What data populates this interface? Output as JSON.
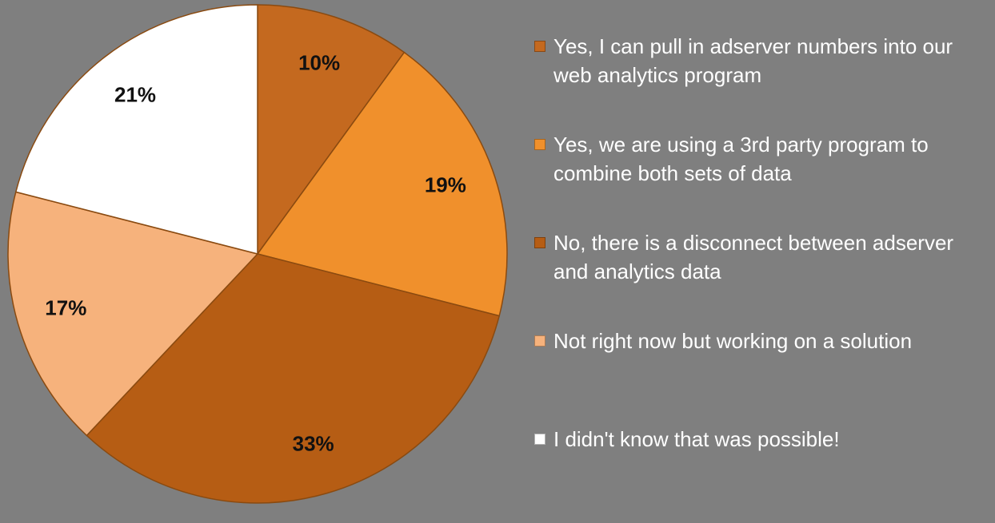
{
  "chart_data": {
    "type": "pie",
    "categories": [
      "Yes, I can pull in adserver numbers into our web analytics program",
      "Yes, we are using a 3rd party program to combine both sets of data",
      "No, there is a disconnect between adserver and analytics data",
      "Not right now but working on a solution",
      "I didn't know that was possible!"
    ],
    "values": [
      10,
      19,
      33,
      17,
      21
    ],
    "value_labels": [
      "10%",
      "19%",
      "33%",
      "17%",
      "21%"
    ],
    "colors": [
      "#c4691f",
      "#f0902c",
      "#b65d14",
      "#f6b27c",
      "#ffffff"
    ],
    "legend": "right"
  }
}
